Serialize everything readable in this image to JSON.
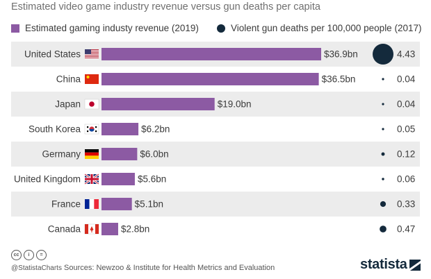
{
  "chart_data": {
    "type": "bar",
    "title": "Estimated video game industry revenue versus gun deaths per capita",
    "categories": [
      "United States",
      "China",
      "Japan",
      "South Korea",
      "Germany",
      "United Kingdom",
      "France",
      "Canada"
    ],
    "series": [
      {
        "name": "Estimated gaming industy revenue (2019)",
        "values": [
          36.9,
          36.5,
          19.0,
          6.2,
          6.0,
          5.6,
          5.1,
          2.8
        ],
        "labels": [
          "$36.9bn",
          "$36.5bn",
          "$19.0bn",
          "$6.2bn",
          "$6.0bn",
          "$5.6bn",
          "$5.1bn",
          "$2.8bn"
        ],
        "color": "#8c5aa3"
      },
      {
        "name": "Violent gun deaths per 100,000 people (2017)",
        "values": [
          4.43,
          0.04,
          0.04,
          0.05,
          0.12,
          0.06,
          0.33,
          0.47
        ],
        "labels": [
          "4.43",
          "0.04",
          "0.04",
          "0.05",
          "0.12",
          "0.06",
          "0.33",
          "0.47"
        ],
        "color": "#142a3c"
      }
    ],
    "flags": [
      "us-flag",
      "cn-flag",
      "jp-flag",
      "kr-flag",
      "de-flag",
      "gb-flag",
      "fr-flag",
      "ca-flag"
    ],
    "row_band_color": "#ececec"
  },
  "footer": {
    "handle": "@StatistaCharts",
    "sources": "Sources: Newzoo & Institute for Health Metrics and Evaluation",
    "brand": "statista",
    "cc_icons": [
      "cc",
      "i",
      "="
    ]
  }
}
